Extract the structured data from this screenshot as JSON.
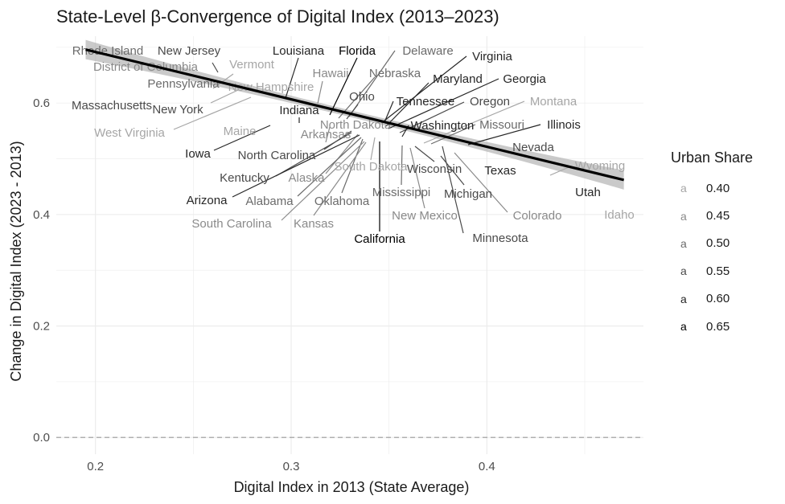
{
  "title": "State-Level β-Convergence of Digital Index (2013–2023)",
  "chart_data": {
    "type": "scatter",
    "title": "State-Level β-Convergence of Digital Index (2013–2023)",
    "xlabel": "Digital Index in 2013 (State Average)",
    "ylabel": "Change in Digital Index (2023 - 2013)",
    "xlim": [
      0.18,
      0.48
    ],
    "ylim": [
      -0.03,
      0.72
    ],
    "x_ticks": [
      0.2,
      0.3,
      0.4
    ],
    "x_tick_labels": [
      "0.2",
      "0.3",
      "0.4"
    ],
    "y_ticks": [
      0.0,
      0.2,
      0.4,
      0.6
    ],
    "y_tick_labels": [
      "0.0",
      "0.2",
      "0.4",
      "0.6"
    ],
    "grid": true,
    "reference_line_y": 0.0,
    "reference_line_style": "dashed",
    "regression": {
      "x": [
        0.195,
        0.47
      ],
      "y": [
        0.696,
        0.462
      ],
      "confidence_band": true
    },
    "legend": {
      "title": "Urban Share",
      "placement": "right",
      "key_glyph": "a",
      "entries": [
        {
          "label": "0.40",
          "color": "#a6a6a6"
        },
        {
          "label": "0.45",
          "color": "#8a8a8a"
        },
        {
          "label": "0.50",
          "color": "#6b6b6b"
        },
        {
          "label": "0.55",
          "color": "#4a4a4a"
        },
        {
          "label": "0.60",
          "color": "#262626"
        },
        {
          "label": "0.65",
          "color": "#000000"
        }
      ]
    },
    "points": [
      {
        "label": "Rhode Island",
        "x": 0.2,
        "y": 0.69,
        "urban_share": 0.5
      },
      {
        "label": "District of Columbia",
        "x": 0.2,
        "y": 0.69,
        "urban_share": 0.45
      },
      {
        "label": "New Jersey",
        "x": 0.267,
        "y": 0.67,
        "urban_share": 0.55
      },
      {
        "label": "Vermont",
        "x": 0.265,
        "y": 0.665,
        "urban_share": 0.4
      },
      {
        "label": "Pennsylvania",
        "x": 0.26,
        "y": 0.64,
        "urban_share": 0.5
      },
      {
        "label": "New Hampshire",
        "x": 0.262,
        "y": 0.645,
        "urban_share": 0.4
      },
      {
        "label": "Massachusetts",
        "x": 0.245,
        "y": 0.615,
        "urban_share": 0.55
      },
      {
        "label": "New York",
        "x": 0.25,
        "y": 0.612,
        "urban_share": 0.55
      },
      {
        "label": "West Virginia",
        "x": 0.307,
        "y": 0.613,
        "urban_share": 0.4
      },
      {
        "label": "Louisiana",
        "x": 0.31,
        "y": 0.62,
        "urban_share": 0.6
      },
      {
        "label": "Indiana",
        "x": 0.322,
        "y": 0.6,
        "urban_share": 0.6
      },
      {
        "label": "Maine",
        "x": 0.305,
        "y": 0.59,
        "urban_share": 0.4
      },
      {
        "label": "Iowa",
        "x": 0.31,
        "y": 0.588,
        "urban_share": 0.6
      },
      {
        "label": "Hawaii",
        "x": 0.325,
        "y": 0.615,
        "urban_share": 0.45
      },
      {
        "label": "Florida",
        "x": 0.33,
        "y": 0.6,
        "urban_share": 0.65
      },
      {
        "label": "Delaware",
        "x": 0.337,
        "y": 0.605,
        "urban_share": 0.5
      },
      {
        "label": "Nebraska",
        "x": 0.334,
        "y": 0.6,
        "urban_share": 0.5
      },
      {
        "label": "Ohio",
        "x": 0.34,
        "y": 0.597,
        "urban_share": 0.55
      },
      {
        "label": "North Dakota",
        "x": 0.342,
        "y": 0.585,
        "urban_share": 0.45
      },
      {
        "label": "Arkansas",
        "x": 0.33,
        "y": 0.58,
        "urban_share": 0.45
      },
      {
        "label": "North Carolina",
        "x": 0.336,
        "y": 0.578,
        "urban_share": 0.55
      },
      {
        "label": "Kentucky",
        "x": 0.336,
        "y": 0.575,
        "urban_share": 0.55
      },
      {
        "label": "Alaska",
        "x": 0.34,
        "y": 0.572,
        "urban_share": 0.45
      },
      {
        "label": "Arizona",
        "x": 0.342,
        "y": 0.568,
        "urban_share": 0.6
      },
      {
        "label": "Alabama",
        "x": 0.345,
        "y": 0.565,
        "urban_share": 0.5
      },
      {
        "label": "Oklahoma",
        "x": 0.346,
        "y": 0.56,
        "urban_share": 0.5
      },
      {
        "label": "South Carolina",
        "x": 0.347,
        "y": 0.555,
        "urban_share": 0.45
      },
      {
        "label": "Kansas",
        "x": 0.348,
        "y": 0.555,
        "urban_share": 0.45
      },
      {
        "label": "South Dakota",
        "x": 0.35,
        "y": 0.565,
        "urban_share": 0.4
      },
      {
        "label": "Virginia",
        "x": 0.35,
        "y": 0.588,
        "urban_share": 0.6
      },
      {
        "label": "Maryland",
        "x": 0.353,
        "y": 0.588,
        "urban_share": 0.6
      },
      {
        "label": "Georgia",
        "x": 0.356,
        "y": 0.582,
        "urban_share": 0.6
      },
      {
        "label": "Tennessee",
        "x": 0.355,
        "y": 0.585,
        "urban_share": 0.6
      },
      {
        "label": "Oregon",
        "x": 0.36,
        "y": 0.575,
        "urban_share": 0.55
      },
      {
        "label": "Montana",
        "x": 0.37,
        "y": 0.56,
        "urban_share": 0.4
      },
      {
        "label": "Washington",
        "x": 0.366,
        "y": 0.57,
        "urban_share": 0.6
      },
      {
        "label": "California",
        "x": 0.354,
        "y": 0.56,
        "urban_share": 0.65
      },
      {
        "label": "Missouri",
        "x": 0.37,
        "y": 0.562,
        "urban_share": 0.5
      },
      {
        "label": "Wisconsin",
        "x": 0.368,
        "y": 0.557,
        "urban_share": 0.55
      },
      {
        "label": "Mississippi",
        "x": 0.366,
        "y": 0.545,
        "urban_share": 0.5
      },
      {
        "label": "New Mexico",
        "x": 0.37,
        "y": 0.548,
        "urban_share": 0.45
      },
      {
        "label": "Michigan",
        "x": 0.374,
        "y": 0.545,
        "urban_share": 0.55
      },
      {
        "label": "Illinois",
        "x": 0.4,
        "y": 0.545,
        "urban_share": 0.6
      },
      {
        "label": "Minnesota",
        "x": 0.386,
        "y": 0.53,
        "urban_share": 0.55
      },
      {
        "label": "Colorado",
        "x": 0.39,
        "y": 0.535,
        "urban_share": 0.45
      },
      {
        "label": "Nevada",
        "x": 0.44,
        "y": 0.54,
        "urban_share": 0.55
      },
      {
        "label": "Texas",
        "x": 0.42,
        "y": 0.51,
        "urban_share": 0.6
      },
      {
        "label": "Wyoming",
        "x": 0.45,
        "y": 0.498,
        "urban_share": 0.4
      },
      {
        "label": "Utah",
        "x": 0.455,
        "y": 0.47,
        "urban_share": 0.6
      },
      {
        "label": "Idaho",
        "x": 0.465,
        "y": 0.455,
        "urban_share": 0.4
      }
    ]
  }
}
